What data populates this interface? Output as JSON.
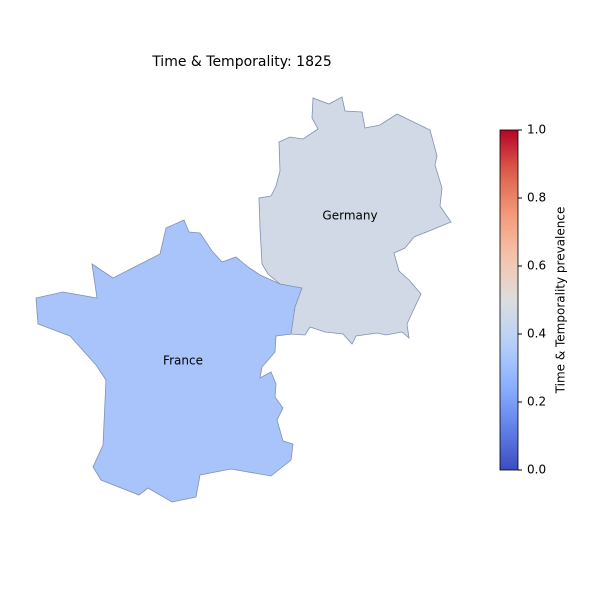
{
  "title": "Time & Temporality: 1825",
  "regions": [
    {
      "name": "France",
      "value": 0.33
    },
    {
      "name": "Germany",
      "value": 0.46
    }
  ],
  "colorbar": {
    "label": "Time & Temporality prevalence",
    "colormap": "coolwarm",
    "lim": [
      0,
      1
    ],
    "ticks": [
      {
        "value": 0,
        "label": "0.0"
      },
      {
        "value": 0.2,
        "label": "0.2"
      },
      {
        "value": 0.4,
        "label": "0.4"
      },
      {
        "value": 0.6,
        "label": "0.6"
      },
      {
        "value": 0.8,
        "label": "0.8"
      },
      {
        "value": 1,
        "label": "1.0"
      }
    ]
  }
}
